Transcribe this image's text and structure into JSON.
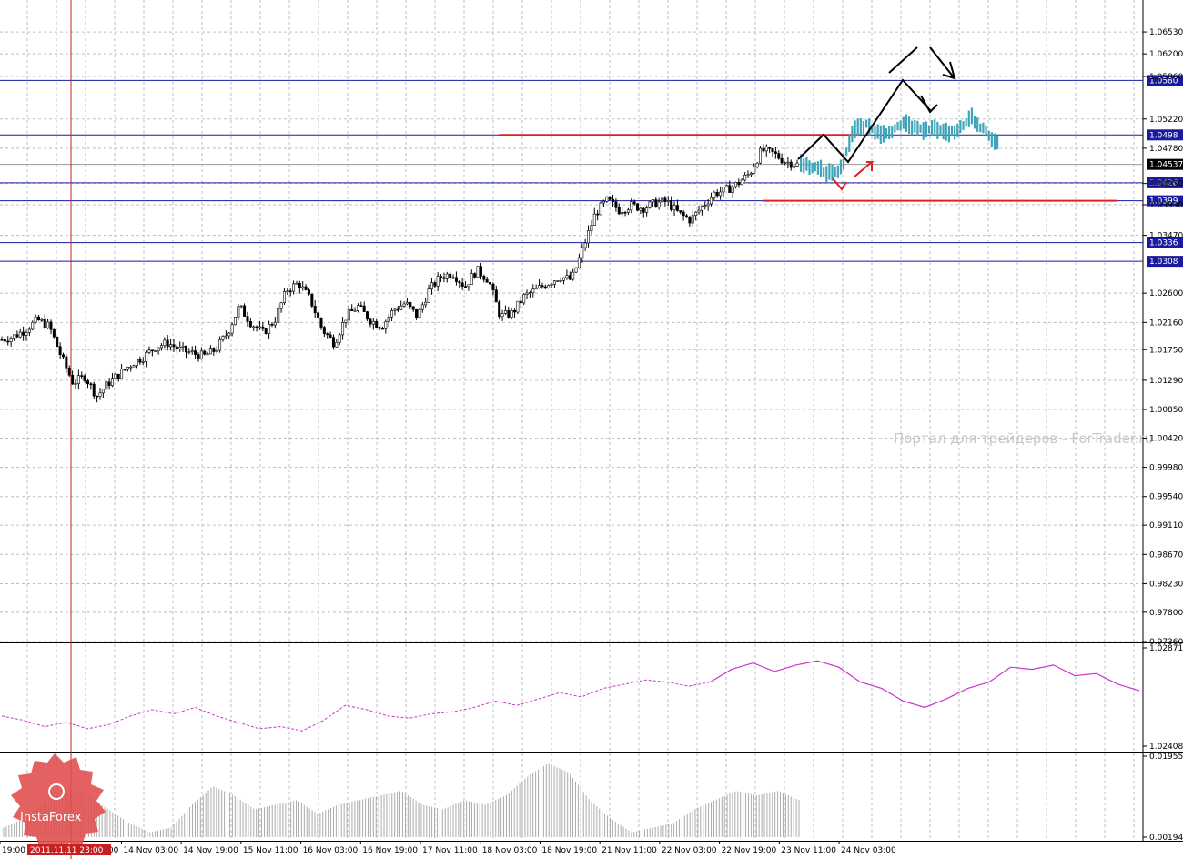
{
  "watermark": "Портал для трейдеров - ForTrader.ru",
  "logo_text": "InstaForex",
  "highlight_date": "2011.11.11 23:00",
  "current_price": "1.04537",
  "colors": {
    "candle": "#000000",
    "forecast": "#3ea4b8",
    "support_line": "#1a1aa0",
    "red_line": "#e02020",
    "indicator1": "#cc33cc",
    "indicator2": "#aaaaaa",
    "grid": "#b8c0c8",
    "logo": "#e05050",
    "price_tag": "#1a1aa0"
  },
  "chart_data": [
    {
      "type": "candlestick",
      "title": "",
      "ylim": [
        0.9736,
        1.0701
      ],
      "y_ticks": [
        "1.06530",
        "1.06200",
        "1.05860",
        "1.05220",
        "1.04780",
        "1.04250",
        "1.03930",
        "1.03470",
        "1.02600",
        "1.02160",
        "1.01750",
        "1.01290",
        "1.00850",
        "1.00420",
        "0.99980",
        "0.99540",
        "0.99110",
        "0.98670",
        "0.98230",
        "0.97800",
        "0.97360"
      ],
      "x_ticks": [
        "19:00",
        "11 Nov 23:00",
        "14 Nov 03:00",
        "14 Nov 19:00",
        "15 Nov 11:00",
        "16 Nov 03:00",
        "16 Nov 19:00",
        "17 Nov 11:00",
        "18 Nov 03:00",
        "18 Nov 19:00",
        "21 Nov 11:00",
        "22 Nov 03:00",
        "22 Nov 19:00",
        "23 Nov 11:00",
        "24 Nov 03:00"
      ],
      "close_path": [
        1.019,
        1.0195,
        1.0205,
        1.022,
        1.021,
        1.0165,
        1.0125,
        1.0135,
        1.0105,
        1.0125,
        1.014,
        1.0155,
        1.0165,
        1.018,
        1.0185,
        1.0175,
        1.017,
        1.0165,
        1.0175,
        1.02,
        1.024,
        1.0215,
        1.02,
        1.022,
        1.0265,
        1.0275,
        1.025,
        1.0205,
        1.0185,
        1.0225,
        1.024,
        1.022,
        1.021,
        1.0235,
        1.0245,
        1.0225,
        1.0265,
        1.0285,
        1.029,
        1.027,
        1.0295,
        1.028,
        1.0225,
        1.023,
        1.0255,
        1.0265,
        1.0275,
        1.0285,
        1.028,
        1.033,
        1.038,
        1.04,
        1.0385,
        1.0392,
        1.0388,
        1.0395,
        1.0398,
        1.038,
        1.037,
        1.039,
        1.041,
        1.0415,
        1.0425,
        1.044,
        1.0475,
        1.047,
        1.0458,
        1.04537
      ],
      "forecast_path": [
        1.0455,
        1.045,
        1.044,
        1.0445,
        1.0505,
        1.0512,
        1.05,
        1.0505,
        1.0515,
        1.0505,
        1.051,
        1.05,
        1.0505,
        1.0525,
        1.0505,
        1.0485
      ],
      "series": [],
      "price_levels": [
        {
          "label": "1.0580",
          "value": 1.058
        },
        {
          "label": "1.0498",
          "value": 1.0498
        },
        {
          "label": "1.0426",
          "value": 1.0426
        },
        {
          "label": "1.0399",
          "value": 1.0399
        },
        {
          "label": "1.0336",
          "value": 1.0336
        },
        {
          "label": "1.0308",
          "value": 1.0308
        }
      ],
      "red_levels": [
        1.0498,
        1.0399
      ]
    },
    {
      "type": "line",
      "y_ticks": [
        "1.02871",
        "1.02408"
      ],
      "ylim": [
        1.02408,
        1.02871
      ],
      "values": [
        1.0255,
        1.0253,
        1.025,
        1.0252,
        1.0249,
        1.0251,
        1.0255,
        1.0258,
        1.0256,
        1.0259,
        1.0255,
        1.0252,
        1.0249,
        1.025,
        1.0248,
        1.0253,
        1.026,
        1.0258,
        1.0255,
        1.0254,
        1.0256,
        1.0257,
        1.0259,
        1.0262,
        1.026,
        1.0263,
        1.0266,
        1.0264,
        1.0268,
        1.027,
        1.0272,
        1.0271,
        1.0269,
        1.0271,
        1.0277,
        1.028,
        1.0276,
        1.0279,
        1.0281,
        1.0278,
        1.0271,
        1.0268,
        1.0262,
        1.0259,
        1.0263,
        1.0268,
        1.0271,
        1.0278,
        1.0277,
        1.0279,
        1.0274,
        1.0275,
        1.027,
        1.0267
      ]
    },
    {
      "type": "histogram",
      "y_ticks": [
        "0.01955",
        "0.00194"
      ],
      "ylim": [
        0.00194,
        0.01955
      ],
      "values": [
        0.004,
        0.006,
        0.01,
        0.012,
        0.011,
        0.008,
        0.005,
        0.003,
        0.004,
        0.009,
        0.013,
        0.011,
        0.008,
        0.009,
        0.01,
        0.007,
        0.009,
        0.01,
        0.011,
        0.012,
        0.009,
        0.008,
        0.01,
        0.009,
        0.011,
        0.015,
        0.018,
        0.016,
        0.01,
        0.006,
        0.003,
        0.004,
        0.005,
        0.008,
        0.01,
        0.012,
        0.011,
        0.012,
        0.01
      ]
    }
  ]
}
